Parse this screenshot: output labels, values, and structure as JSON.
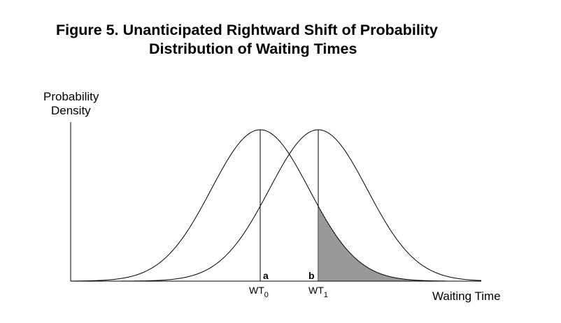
{
  "title": {
    "line1": "Figure 5.  Unanticipated Rightward Shift of Probability",
    "line2": "Distribution of Waiting Times"
  },
  "axes": {
    "y_label_line1": "Probability",
    "y_label_line2": "Density",
    "x_label": "Waiting Time"
  },
  "markers": {
    "wt0": {
      "base": "WT",
      "sub": "0"
    },
    "wt1": {
      "base": "WT",
      "sub": "1"
    },
    "point_a": "a",
    "point_b": "b"
  },
  "colors": {
    "line": "#000000",
    "background": "#ffffff"
  }
}
